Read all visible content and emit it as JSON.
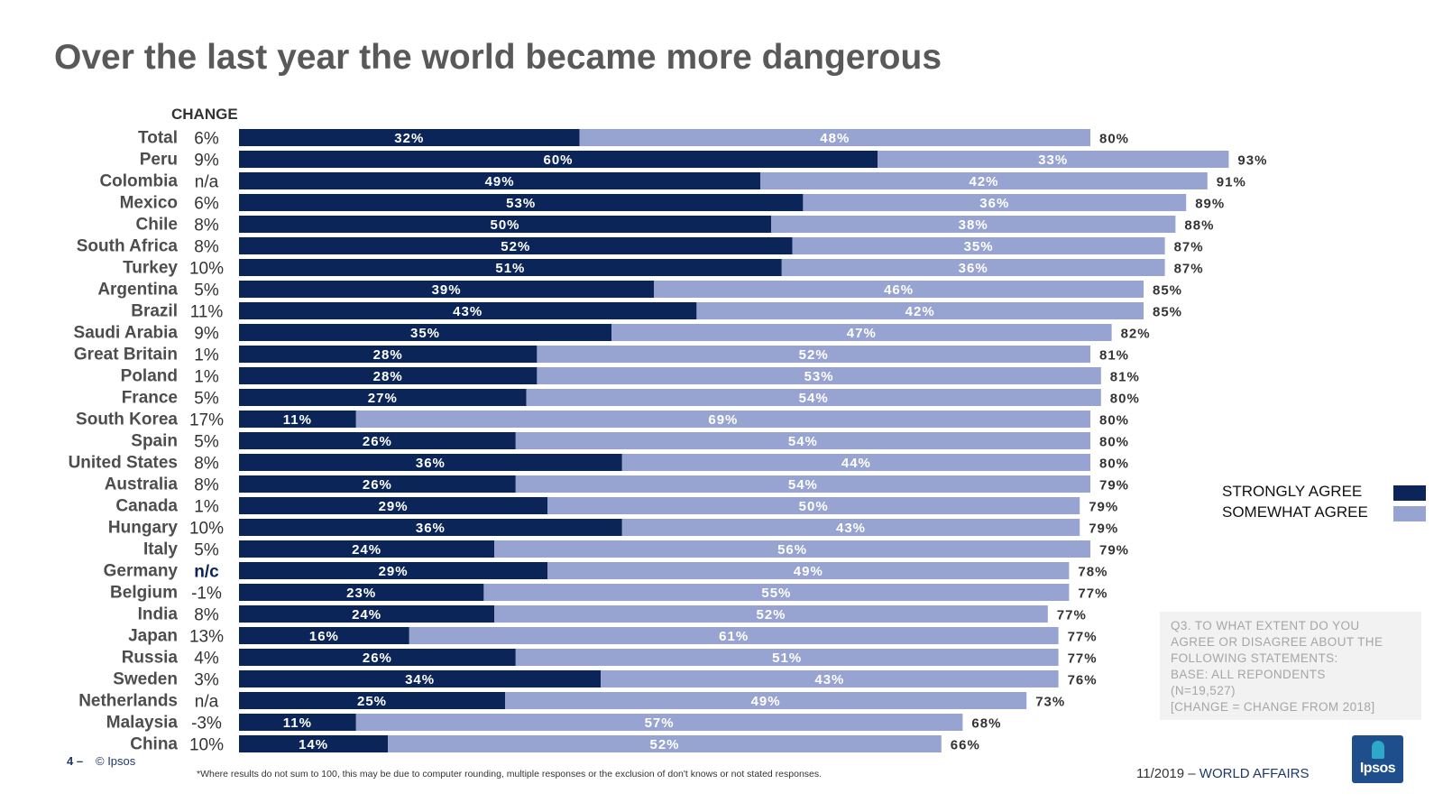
{
  "title": "Over the last year the world became more dangerous",
  "change_header": "CHANGE",
  "legend": [
    {
      "label": "STRONGLY AGREE",
      "color": "#0b2559"
    },
    {
      "label": "SOMEWHAT AGREE",
      "color": "#97a3d1"
    }
  ],
  "note": [
    "Q3. TO WHAT EXTENT DO YOU",
    "AGREE OR DISAGREE ABOUT THE",
    "FOLLOWING STATEMENTS:",
    "BASE: ALL REPONDENTS",
    "(N=19,527)",
    "[CHANGE = CHANGE FROM 2018]"
  ],
  "footer": {
    "page_number": "4 –",
    "copyright": "© Ipsos",
    "footnote": "*Where results do not sum to 100, this may be due to computer rounding, multiple responses or the exclusion of don't knows or not stated responses.",
    "date": "11/2019 –",
    "section": "WORLD AFFAIRS",
    "logo_text": "Ipsos"
  },
  "colors": {
    "strongly": "#0b2559",
    "somewhat": "#97a3d1",
    "change_highlight": "#0b2559"
  },
  "chart_data": {
    "type": "bar",
    "orientation": "horizontal",
    "stacked": true,
    "categories": [
      "Total",
      "Peru",
      "Colombia",
      "Mexico",
      "Chile",
      "South Africa",
      "Turkey",
      "Argentina",
      "Brazil",
      "Saudi Arabia",
      "Great Britain",
      "Poland",
      "France",
      "South Korea",
      "Spain",
      "United States",
      "Australia",
      "Canada",
      "Hungary",
      "Italy",
      "Germany",
      "Belgium",
      "India",
      "Japan",
      "Russia",
      "Sweden",
      "Netherlands",
      "Malaysia",
      "China"
    ],
    "series": [
      {
        "name": "STRONGLY AGREE",
        "values": [
          32,
          60,
          49,
          53,
          50,
          52,
          51,
          39,
          43,
          35,
          28,
          28,
          27,
          11,
          26,
          36,
          26,
          29,
          36,
          24,
          29,
          23,
          24,
          16,
          26,
          34,
          25,
          11,
          14
        ]
      },
      {
        "name": "SOMEWHAT AGREE",
        "values": [
          48,
          33,
          42,
          36,
          38,
          35,
          36,
          46,
          42,
          47,
          52,
          53,
          54,
          69,
          54,
          44,
          54,
          50,
          43,
          56,
          49,
          55,
          52,
          61,
          51,
          43,
          49,
          57,
          52
        ]
      }
    ],
    "totals": [
      80,
      93,
      91,
      89,
      88,
      87,
      87,
      85,
      85,
      82,
      81,
      81,
      80,
      80,
      80,
      80,
      79,
      79,
      79,
      79,
      78,
      77,
      77,
      77,
      77,
      76,
      73,
      68,
      66
    ],
    "change": [
      "6%",
      "9%",
      "n/a",
      "6%",
      "8%",
      "8%",
      "10%",
      "5%",
      "11%",
      "9%",
      "1%",
      "1%",
      "5%",
      "17%",
      "5%",
      "8%",
      "8%",
      "1%",
      "10%",
      "5%",
      "n/c",
      "-1%",
      "8%",
      "13%",
      "4%",
      "3%",
      "n/a",
      "-3%",
      "10%"
    ],
    "value_format": "{v}%",
    "xlim": [
      0,
      100
    ]
  }
}
